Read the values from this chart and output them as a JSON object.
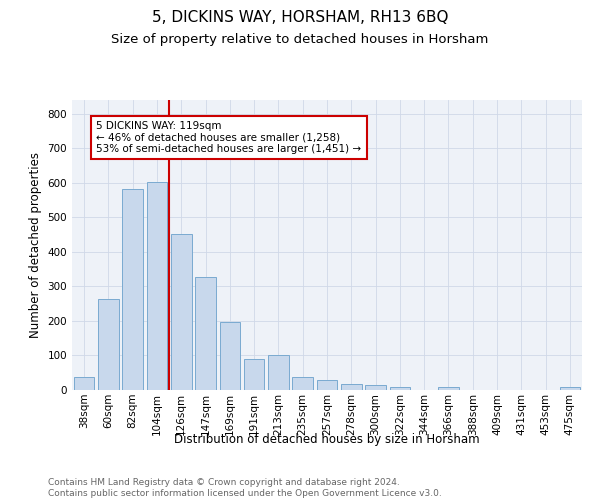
{
  "title": "5, DICKINS WAY, HORSHAM, RH13 6BQ",
  "subtitle": "Size of property relative to detached houses in Horsham",
  "xlabel": "Distribution of detached houses by size in Horsham",
  "ylabel": "Number of detached properties",
  "categories": [
    "38sqm",
    "60sqm",
    "82sqm",
    "104sqm",
    "126sqm",
    "147sqm",
    "169sqm",
    "191sqm",
    "213sqm",
    "235sqm",
    "257sqm",
    "278sqm",
    "300sqm",
    "322sqm",
    "344sqm",
    "366sqm",
    "388sqm",
    "409sqm",
    "431sqm",
    "453sqm",
    "475sqm"
  ],
  "values": [
    38,
    265,
    583,
    603,
    452,
    328,
    198,
    90,
    100,
    38,
    30,
    18,
    14,
    10,
    0,
    8,
    0,
    0,
    0,
    0,
    8
  ],
  "bar_color": "#c8d8ec",
  "bar_edge_color": "#7aaad0",
  "vline_color": "#cc0000",
  "annotation_text": "5 DICKINS WAY: 119sqm\n← 46% of detached houses are smaller (1,258)\n53% of semi-detached houses are larger (1,451) →",
  "annotation_box_color": "#ffffff",
  "annotation_box_edge": "#cc0000",
  "ylim": [
    0,
    840
  ],
  "yticks": [
    0,
    100,
    200,
    300,
    400,
    500,
    600,
    700,
    800
  ],
  "grid_color": "#d0d8e8",
  "background_color": "#eef2f8",
  "footer_text": "Contains HM Land Registry data © Crown copyright and database right 2024.\nContains public sector information licensed under the Open Government Licence v3.0.",
  "title_fontsize": 11,
  "subtitle_fontsize": 9.5,
  "axis_label_fontsize": 8.5,
  "tick_fontsize": 7.5,
  "footer_fontsize": 6.5
}
